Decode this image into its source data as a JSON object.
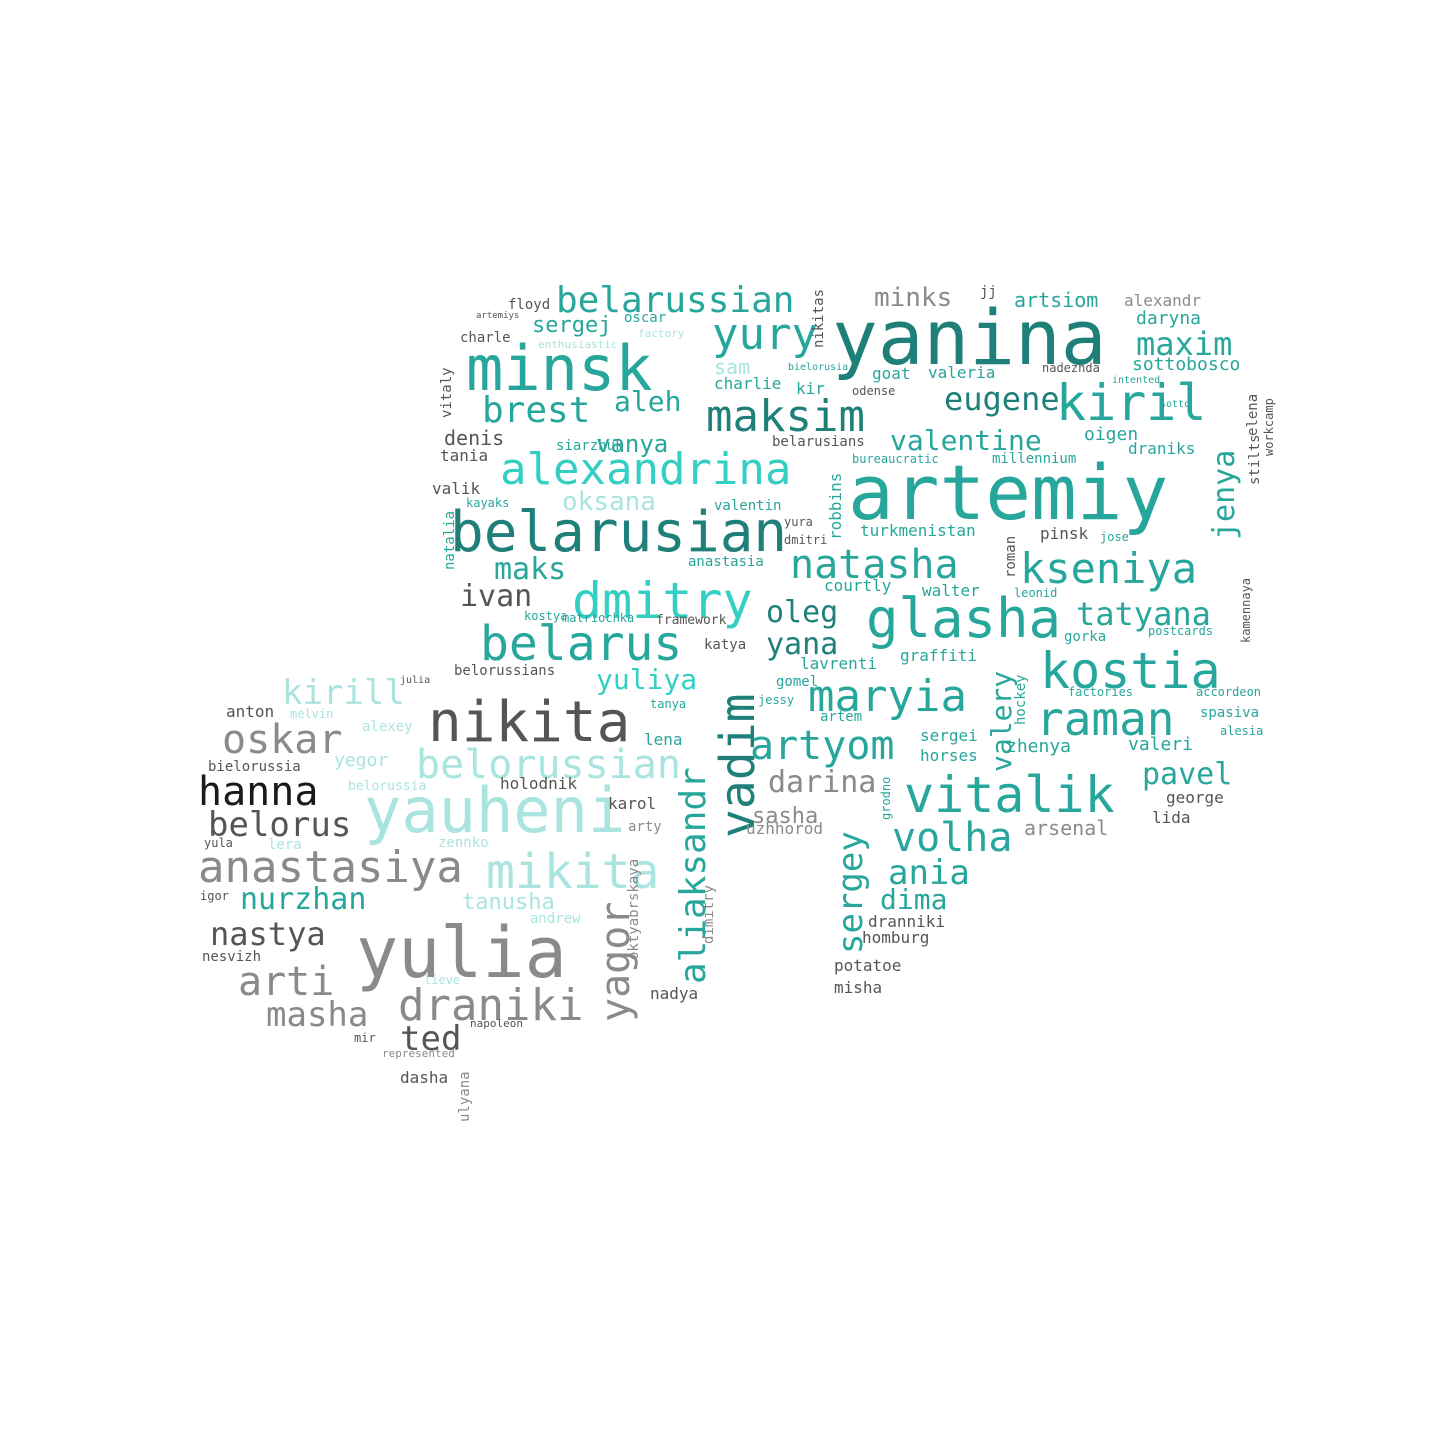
{
  "palette": {
    "teal_dark": "#1f7f79",
    "teal": "#27a69b",
    "teal_bright": "#33cfc4",
    "aqua_light": "#a9e4df",
    "grey": "#8a8a8a",
    "grey_dark": "#555555",
    "black": "#1a1a1a"
  },
  "words": [
    "yanina",
    "artemiy",
    "minsk",
    "belarusian",
    "alexandrina",
    "yury",
    "maksim",
    "kiril",
    "belarussian",
    "brest",
    "eugene",
    "maxim",
    "valentine",
    "natasha",
    "kseniya",
    "dmitry",
    "glasha",
    "belarus",
    "kostia",
    "nikita",
    "maryia",
    "raman",
    "vadim",
    "artyom",
    "vitalik",
    "yauheni",
    "mikita",
    "yulia",
    "anastasiya",
    "draniki",
    "oskar",
    "kirill",
    "hanna",
    "belorus",
    "belorussian",
    "nastya",
    "arti",
    "masha",
    "yagor",
    "aliaksandr",
    "sergey",
    "volha",
    "ania",
    "dima",
    "jenya",
    "tatyana",
    "oleg",
    "yana",
    "valery",
    "pavel",
    "darina",
    "sasha",
    "nurzhan",
    "ted",
    "maks",
    "ivan",
    "oksana",
    "vanya",
    "aleh",
    "minks",
    "sergej",
    "sam",
    "artsiom",
    "yuliya",
    "tanusha",
    "daryna",
    "alexandr",
    "denis",
    "tania",
    "valik",
    "floyd",
    "oscar",
    "charle",
    "charlie",
    "vitaly",
    "valeria",
    "goat",
    "sottobosco",
    "oigen",
    "draniks",
    "stilts",
    "elena",
    "workcamp",
    "siarzhuk",
    "millennium",
    "bureaucratic",
    "valentin",
    "robbins",
    "turkmenistan",
    "roman",
    "pinsk",
    "jose",
    "anastasia",
    "kayaks",
    "natalia",
    "dmitri",
    "walter",
    "leonid",
    "postcards",
    "kamennaya",
    "courtly",
    "gorka",
    "graffiti",
    "lavrenti",
    "gomel",
    "framework",
    "katya",
    "matriochka",
    "kostya",
    "belorussians",
    "artem",
    "spasiva",
    "accordeon",
    "factories",
    "hockey",
    "zhenya",
    "valeri",
    "alesia",
    "sergei",
    "horses",
    "arsenal",
    "george",
    "lida",
    "uzhhorod",
    "lena",
    "tanya",
    "holodnik",
    "karol",
    "arty",
    "anton",
    "melvin",
    "alexey",
    "yegor",
    "bielorussia",
    "belorussia",
    "lera",
    "zennko",
    "yula",
    "igor",
    "andrew",
    "nesvizh",
    "lieve",
    "nadya",
    "oktyabrskaya",
    "dimitry",
    "napoleon",
    "mir",
    "represented",
    "dasha",
    "ulyana",
    "homburg",
    "dranniki",
    "potatoe",
    "misha",
    "nadezhda",
    "belarusians",
    "odense",
    "kir",
    "jessy",
    "enthusiastic",
    "yura",
    "factory",
    "grodno",
    "jj",
    "bielorusia",
    "intented",
    "nikitas",
    "julia",
    "sotto",
    "artemiys"
  ]
}
